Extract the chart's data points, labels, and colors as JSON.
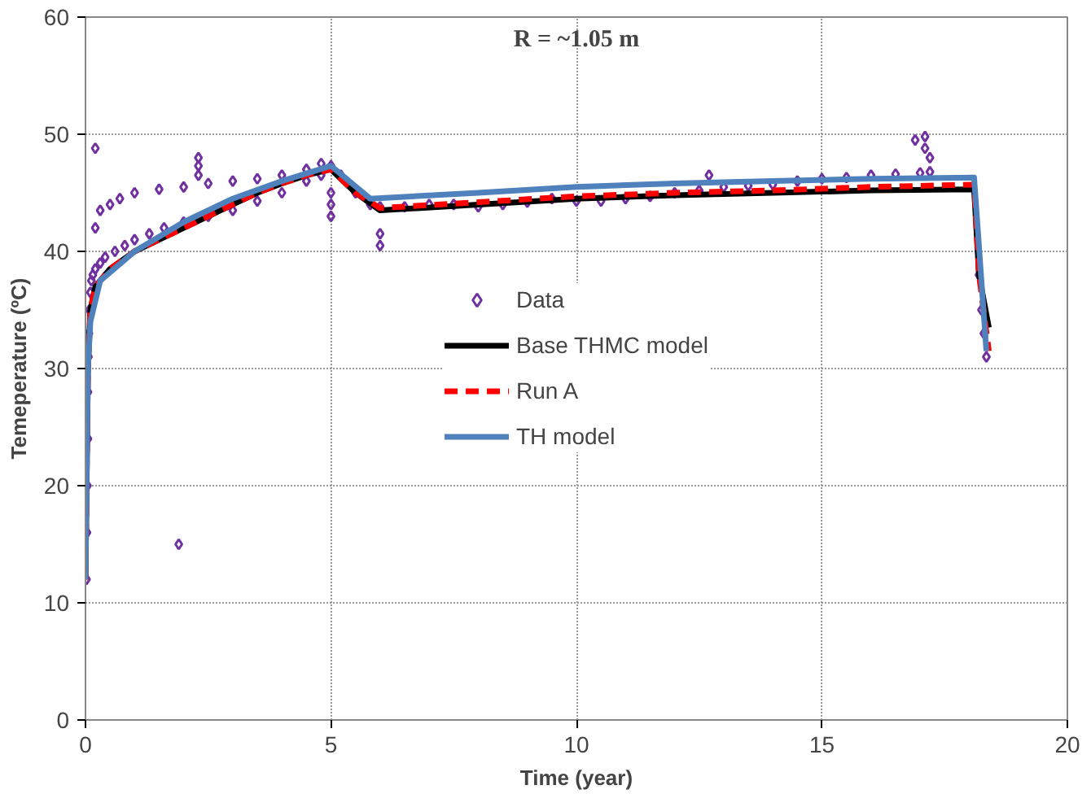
{
  "chart_data": {
    "type": "line",
    "title": "R = ~1.05 m",
    "xlabel": "Time (year)",
    "ylabel": "Temeperature (ºC)",
    "xlim": [
      0,
      20
    ],
    "ylim": [
      0,
      60
    ],
    "xticks": [
      0,
      5,
      10,
      15,
      20
    ],
    "yticks": [
      0,
      10,
      20,
      30,
      40,
      50,
      60
    ],
    "grid": true,
    "legend": "center",
    "line_style": "solid",
    "series": [
      {
        "name": "Data",
        "type": "scatter",
        "marker": "diamond",
        "color": "#7030a0",
        "x": [
          0.02,
          0.03,
          0.04,
          0.05,
          0.05,
          0.06,
          0.07,
          0.08,
          0.1,
          0.12,
          0.15,
          0.2,
          0.3,
          0.4,
          0.6,
          0.8,
          1.0,
          1.3,
          1.6,
          2.0,
          2.5,
          3.0,
          3.5,
          4.0,
          4.5,
          4.8,
          0.2,
          0.3,
          0.5,
          0.7,
          1.0,
          1.5,
          2.0,
          2.5,
          3.0,
          3.5,
          4.0,
          4.5,
          4.8,
          5.0,
          5.2,
          5.5,
          5.8,
          6.0,
          6.5,
          7.0,
          7.5,
          8.0,
          8.5,
          9.0,
          9.5,
          10.0,
          10.5,
          11.0,
          11.5,
          12.0,
          12.5,
          12.7,
          13.0,
          13.5,
          14.0,
          14.5,
          15.0,
          15.5,
          16.0,
          16.5,
          17.0,
          17.2,
          0.2,
          1.9,
          2.3,
          2.3,
          2.3,
          5.0,
          5.0,
          5.0,
          6.0,
          6.0,
          16.9,
          17.1,
          17.1,
          17.2,
          18.2,
          18.25,
          18.3,
          18.35
        ],
        "values": [
          12,
          16,
          20,
          24,
          28,
          31,
          33,
          35,
          36.5,
          37.5,
          38,
          38.5,
          39,
          39.5,
          40,
          40.5,
          41,
          41.5,
          42,
          42.5,
          43,
          43.5,
          44.3,
          45,
          46,
          46.5,
          42,
          43.5,
          44,
          44.5,
          45,
          45.3,
          45.5,
          45.8,
          46,
          46.2,
          46.5,
          47,
          47.5,
          47.3,
          46.5,
          45,
          44,
          43.8,
          43.8,
          44,
          44,
          43.8,
          44,
          44.2,
          44.5,
          44.3,
          44.3,
          44.5,
          44.7,
          45,
          45.2,
          46.5,
          45.5,
          45.6,
          45.7,
          46,
          46.2,
          46.3,
          46.5,
          46.6,
          46.7,
          46.8,
          48.8,
          15,
          48,
          47.3,
          46.5,
          45,
          44,
          43,
          41.5,
          40.5,
          49.5,
          49.8,
          48.8,
          48,
          38,
          35,
          33,
          31
        ]
      },
      {
        "name": "Base THMC model",
        "color": "#000000",
        "x": [
          0,
          0.05,
          0.1,
          0.2,
          0.5,
          1,
          1.5,
          2,
          2.5,
          3,
          3.5,
          4,
          4.5,
          5,
          5.5,
          6,
          8,
          10,
          12,
          14,
          16,
          18.1,
          18.2,
          18.4
        ],
        "values": [
          12,
          30,
          35,
          37,
          38.5,
          40,
          41,
          42,
          43,
          44,
          45,
          45.8,
          46.5,
          47,
          45,
          43.5,
          44,
          44.5,
          44.8,
          45,
          45.2,
          45.3,
          38,
          33.5
        ]
      },
      {
        "name": "Run A",
        "color": "#ff0000",
        "line_style": "dashed",
        "x": [
          0,
          0.05,
          0.1,
          0.2,
          0.5,
          1,
          1.5,
          2,
          2.5,
          3,
          3.5,
          4,
          4.5,
          5,
          5.5,
          6,
          8,
          10,
          12,
          14,
          16,
          18.1,
          18.2,
          18.4
        ],
        "values": [
          12,
          30,
          35,
          37,
          38.5,
          40,
          41,
          42,
          43,
          44,
          45,
          45.8,
          46.5,
          47,
          45,
          43.7,
          44.2,
          44.7,
          45,
          45.2,
          45.5,
          45.7,
          38,
          31.5
        ]
      },
      {
        "name": "TH model",
        "color": "#4f81bd",
        "x": [
          0,
          0.05,
          0.1,
          0.3,
          1,
          2,
          3,
          4,
          5,
          5.8,
          8,
          10,
          12,
          14,
          16,
          18.1,
          18.35
        ],
        "values": [
          12,
          30,
          34,
          37.5,
          40,
          42.5,
          44.5,
          46,
          47.3,
          44.5,
          45,
          45.5,
          45.8,
          46,
          46.2,
          46.3,
          31.5
        ]
      }
    ]
  }
}
